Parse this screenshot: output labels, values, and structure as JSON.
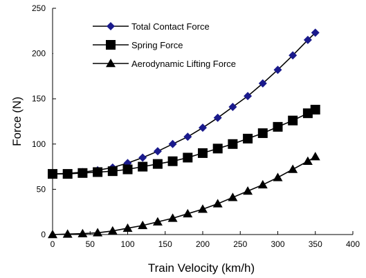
{
  "chart_data": {
    "type": "line",
    "title": "",
    "xlabel": "Train Velocity (km/h)",
    "ylabel": "Force (N)",
    "xlim": [
      0,
      400
    ],
    "ylim": [
      0,
      250
    ],
    "xticks": [
      "0",
      "50",
      "100",
      "150",
      "200",
      "250",
      "300",
      "350",
      "400"
    ],
    "yticks": [
      "0",
      "50",
      "100",
      "150",
      "200",
      "250"
    ],
    "grid": false,
    "legend_position": "top-left",
    "series": [
      {
        "name": "Total Contact Force",
        "marker": "diamond",
        "color": "#1a1a8c",
        "x": [
          0,
          20,
          40,
          60,
          80,
          100,
          120,
          140,
          160,
          180,
          200,
          220,
          240,
          260,
          280,
          300,
          320,
          340,
          350
        ],
        "y": [
          67,
          67.5,
          69,
          71,
          74,
          79,
          85,
          92,
          100,
          108,
          118,
          129,
          141,
          153,
          167,
          182,
          198,
          215,
          223
        ]
      },
      {
        "name": "Spring Force",
        "marker": "square",
        "color": "#000000",
        "x": [
          0,
          20,
          40,
          60,
          80,
          100,
          120,
          140,
          160,
          180,
          200,
          220,
          240,
          260,
          280,
          300,
          320,
          340,
          350
        ],
        "y": [
          67,
          67,
          68,
          69,
          70,
          72,
          75,
          78,
          81,
          85,
          90,
          95,
          100,
          106,
          112,
          119,
          126,
          134,
          138
        ]
      },
      {
        "name": "Aerodynamic Lifting Force",
        "marker": "triangle",
        "color": "#000000",
        "x": [
          0,
          20,
          40,
          60,
          80,
          100,
          120,
          140,
          160,
          180,
          200,
          220,
          240,
          260,
          280,
          300,
          320,
          340,
          350
        ],
        "y": [
          0,
          0.5,
          1,
          2,
          4,
          7,
          10,
          14,
          18,
          23,
          28,
          34,
          41,
          48,
          55,
          63,
          72,
          81,
          86
        ]
      }
    ]
  }
}
